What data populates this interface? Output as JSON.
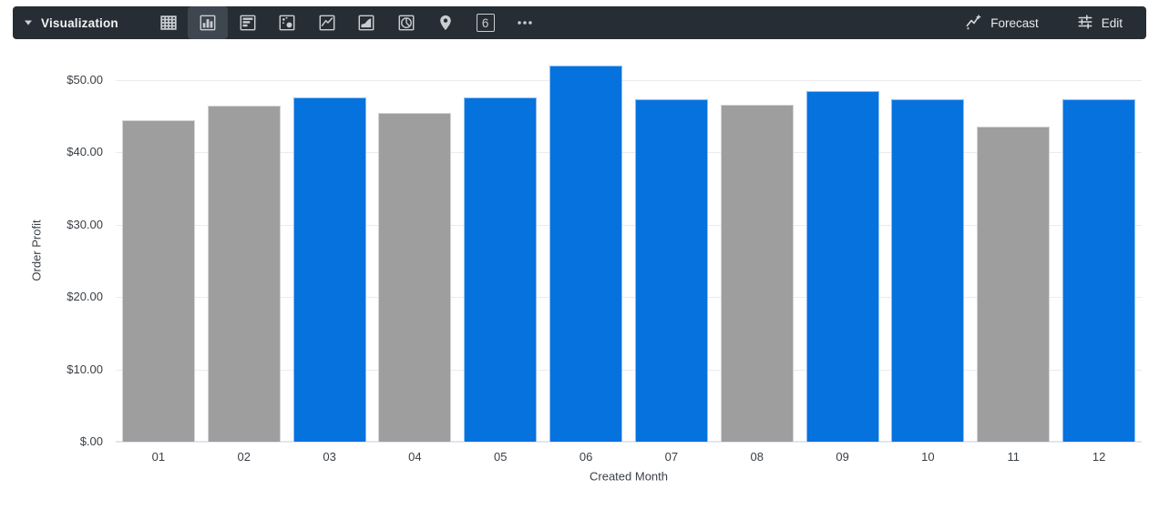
{
  "toolbar": {
    "title": "Visualization",
    "bg_color": "#262D34",
    "selected_tile_color": "#3E4650",
    "icon_color": "#C8CDD2",
    "text_color": "#E8EAED",
    "viz_types": [
      {
        "name": "table",
        "selected": false
      },
      {
        "name": "column",
        "selected": true
      },
      {
        "name": "bar",
        "selected": false
      },
      {
        "name": "scatter",
        "selected": false
      },
      {
        "name": "line",
        "selected": false
      },
      {
        "name": "area",
        "selected": false
      },
      {
        "name": "pie",
        "selected": false
      },
      {
        "name": "map",
        "selected": false
      },
      {
        "name": "single-value",
        "selected": false,
        "glyph": "6"
      },
      {
        "name": "more",
        "selected": false
      }
    ],
    "forecast_label": "Forecast",
    "edit_label": "Edit"
  },
  "chart_data": {
    "type": "bar",
    "title": "",
    "xlabel": "Created Month",
    "ylabel": "Order Profit",
    "categories": [
      "01",
      "02",
      "03",
      "04",
      "05",
      "06",
      "07",
      "08",
      "09",
      "10",
      "11",
      "12"
    ],
    "values": [
      44.5,
      46.5,
      47.6,
      45.5,
      47.6,
      52.0,
      47.3,
      46.6,
      48.5,
      47.3,
      43.6,
      47.3
    ],
    "bar_colors": [
      "gray",
      "gray",
      "blue",
      "gray",
      "blue",
      "blue",
      "blue",
      "gray",
      "blue",
      "blue",
      "gray",
      "blue"
    ],
    "colors": {
      "blue": "#0572DE",
      "gray": "#9E9E9E"
    },
    "y_ticks": [
      {
        "value": 50,
        "label": "$50.00"
      },
      {
        "value": 40,
        "label": "$40.00"
      },
      {
        "value": 30,
        "label": "$30.00"
      },
      {
        "value": 20,
        "label": "$20.00"
      },
      {
        "value": 10,
        "label": "$10.00"
      },
      {
        "value": 0,
        "label": "$.00"
      }
    ],
    "ylim": [
      0,
      53.5
    ],
    "grid": true,
    "legend": false
  }
}
